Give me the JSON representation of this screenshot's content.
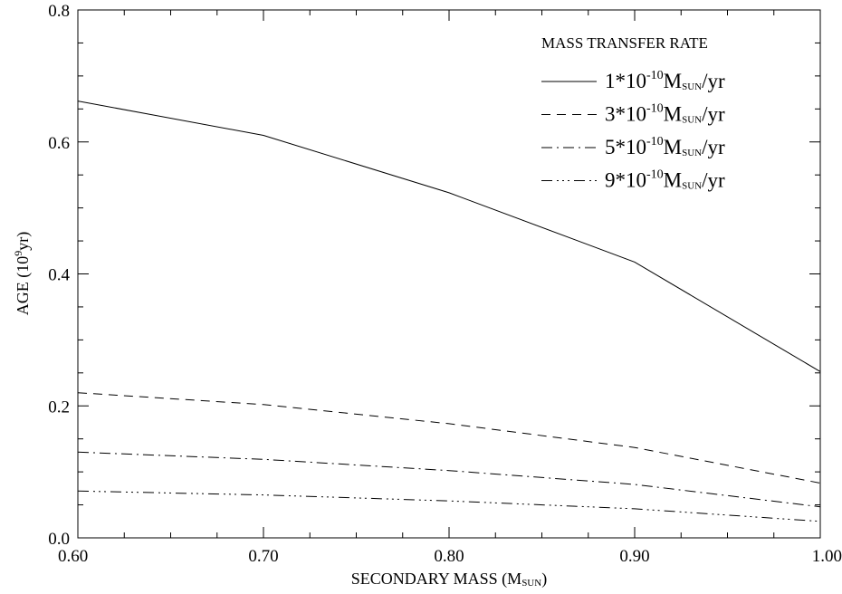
{
  "chart_data": {
    "type": "line",
    "xlabel": {
      "main": "SECONDARY MASS (M",
      "sub": "SUN",
      "close": ")"
    },
    "ylabel": {
      "main": "AGE (10",
      "sup": "9",
      "unit": "yr)"
    },
    "xlim": [
      0.6,
      1.0
    ],
    "ylim": [
      0.0,
      0.8
    ],
    "x_ticks": [
      "0.60",
      "0.70",
      "0.80",
      "0.90",
      "1.00"
    ],
    "y_ticks": [
      "0.0",
      "0.2",
      "0.4",
      "0.6",
      "0.8"
    ],
    "legend_title": "MASS TRANSFER RATE",
    "legend_position": "top-right",
    "grid": false,
    "x": [
      0.6,
      0.7,
      0.8,
      0.9,
      1.0
    ],
    "series": [
      {
        "label": {
          "coef": "1*10",
          "exp": "-10",
          "m": "M",
          "sub": "SUN",
          "unit": "/yr"
        },
        "style": "solid",
        "values": [
          0.662,
          0.61,
          0.523,
          0.418,
          0.252
        ]
      },
      {
        "label": {
          "coef": "3*10",
          "exp": "-10",
          "m": "M",
          "sub": "SUN",
          "unit": "/yr"
        },
        "style": "dashed",
        "values": [
          0.22,
          0.202,
          0.173,
          0.137,
          0.083
        ]
      },
      {
        "label": {
          "coef": "5*10",
          "exp": "-10",
          "m": "M",
          "sub": "SUN",
          "unit": "/yr"
        },
        "style": "dashdot",
        "values": [
          0.13,
          0.119,
          0.102,
          0.081,
          0.047
        ]
      },
      {
        "label": {
          "coef": "9*10",
          "exp": "-10",
          "m": "M",
          "sub": "SUN",
          "unit": "/yr"
        },
        "style": "dashdotdotdot",
        "values": [
          0.071,
          0.065,
          0.056,
          0.044,
          0.025
        ]
      }
    ]
  }
}
